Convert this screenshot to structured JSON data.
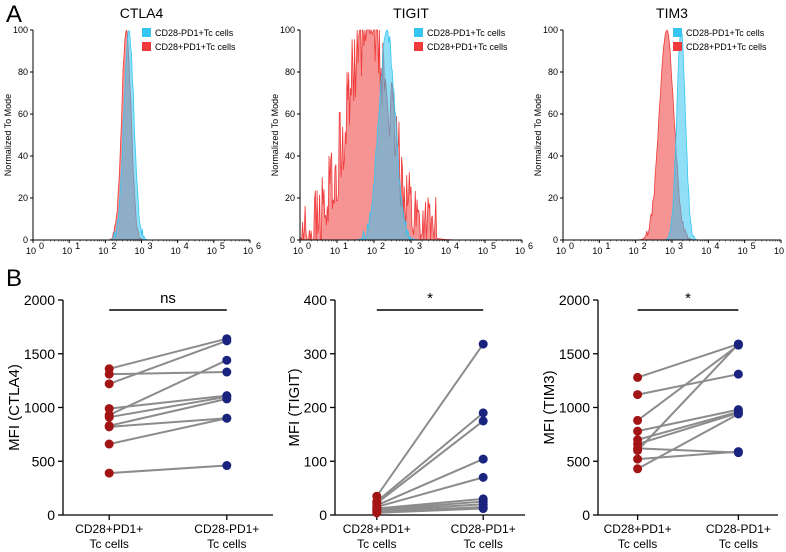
{
  "panel_labels": {
    "a": "A",
    "b": "B"
  },
  "colors": {
    "tc_pd1_pos_cd28_neg": "#36c5f0",
    "tc_pd1_pos_cd28_pos": "#ef3b3b",
    "dot_cd28_pos": "#a31515",
    "dot_cd28_neg": "#1a237e",
    "line": "#8c8c8c"
  },
  "chart_data": [
    {
      "type": "histogram",
      "title": "CTLA4",
      "ylabel": "Normalized To Mode",
      "x_scale": "log",
      "x_tick_labels": [
        "10",
        "10",
        "10",
        "10",
        "10",
        "10",
        "10"
      ],
      "x_tick_exponents": [
        "0",
        "1",
        "2",
        "3",
        "4",
        "5",
        "6"
      ],
      "y_ticks": [
        0,
        20,
        40,
        60,
        80,
        100
      ],
      "ylim": [
        0,
        100
      ],
      "legend": [
        "CD28-PD1+Tc cells",
        "CD28+PD1+Tc cells"
      ],
      "series": [
        {
          "name": "CD28-PD1+Tc cells",
          "peak_log10": 2.65,
          "width": 0.14,
          "noise": 5
        },
        {
          "name": "CD28+PD1+Tc cells",
          "peak_log10": 2.58,
          "width": 0.13,
          "noise": 5
        }
      ]
    },
    {
      "type": "histogram",
      "title": "TIGIT",
      "ylabel": "Normalized To Mode",
      "x_scale": "log",
      "x_tick_labels": [
        "10",
        "10",
        "10",
        "10",
        "10",
        "10",
        "10"
      ],
      "x_tick_exponents": [
        "0",
        "1",
        "2",
        "3",
        "4",
        "5",
        "6"
      ],
      "y_ticks": [
        0,
        20,
        40,
        60,
        80,
        100
      ],
      "ylim": [
        0,
        100
      ],
      "legend": [
        "CD28-PD1+Tc cells",
        "CD28+PD1+Tc cells"
      ],
      "series": [
        {
          "name": "CD28-PD1+Tc cells",
          "peak_log10": 2.35,
          "width": 0.22,
          "noise": 8
        },
        {
          "name": "CD28+PD1+Tc cells",
          "peak_log10": 1.85,
          "width": 0.6,
          "noise": 40
        }
      ]
    },
    {
      "type": "histogram",
      "title": "TIM3",
      "ylabel": "Normalized To Mode",
      "x_scale": "log",
      "x_tick_labels": [
        "10",
        "10",
        "10",
        "10",
        "10",
        "10",
        "10"
      ],
      "x_tick_exponents": [
        "0",
        "1",
        "2",
        "3",
        "4",
        "5",
        "6"
      ],
      "y_ticks": [
        0,
        20,
        40,
        60,
        80,
        100
      ],
      "ylim": [
        0,
        100
      ],
      "legend": [
        "CD28-PD1+Tc cells",
        "CD28+PD1+Tc cells"
      ],
      "series": [
        {
          "name": "CD28-PD1+Tc cells",
          "peak_log10": 3.25,
          "width": 0.12,
          "noise": 4
        },
        {
          "name": "CD28+PD1+Tc cells",
          "peak_log10": 2.85,
          "width": 0.2,
          "noise": 4
        }
      ]
    },
    {
      "type": "paired-dot",
      "ylabel": "MFI (CTLA4)",
      "ylim": [
        0,
        2000
      ],
      "y_ticks": [
        0,
        500,
        1000,
        1500,
        2000
      ],
      "categories": [
        "CD28+PD1+\nTc cells",
        "CD28-PD1+\nTc cells"
      ],
      "significance": "ns",
      "pairs": [
        [
          1360,
          1640
        ],
        [
          1310,
          1330
        ],
        [
          1220,
          1620
        ],
        [
          990,
          1110
        ],
        [
          930,
          1440
        ],
        [
          910,
          1100
        ],
        [
          830,
          1080
        ],
        [
          820,
          900
        ],
        [
          660,
          900
        ],
        [
          390,
          460
        ]
      ]
    },
    {
      "type": "paired-dot",
      "ylabel": "MFI (TIGIT)",
      "ylim": [
        0,
        400
      ],
      "y_ticks": [
        0,
        100,
        200,
        300,
        400
      ],
      "categories": [
        "CD28+PD1+\nTc cells",
        "CD28-PD1+\nTc cells"
      ],
      "significance": "*",
      "pairs": [
        [
          35,
          318
        ],
        [
          25,
          190
        ],
        [
          22,
          175
        ],
        [
          18,
          104
        ],
        [
          15,
          70
        ],
        [
          12,
          30
        ],
        [
          10,
          25
        ],
        [
          8,
          20
        ],
        [
          6,
          15
        ],
        [
          4,
          12
        ]
      ]
    },
    {
      "type": "paired-dot",
      "ylabel": "MFI (TIM3)",
      "ylim": [
        0,
        2000
      ],
      "y_ticks": [
        0,
        500,
        1000,
        1500,
        2000
      ],
      "categories": [
        "CD28+PD1+\nTc cells",
        "CD28-PD1+\nTc cells"
      ],
      "significance": "*",
      "pairs": [
        [
          1280,
          1590
        ],
        [
          1120,
          1310
        ],
        [
          880,
          1580
        ],
        [
          780,
          980
        ],
        [
          700,
          960
        ],
        [
          660,
          950
        ],
        [
          620,
          580
        ],
        [
          600,
          1590
        ],
        [
          520,
          590
        ],
        [
          430,
          940
        ]
      ]
    }
  ]
}
